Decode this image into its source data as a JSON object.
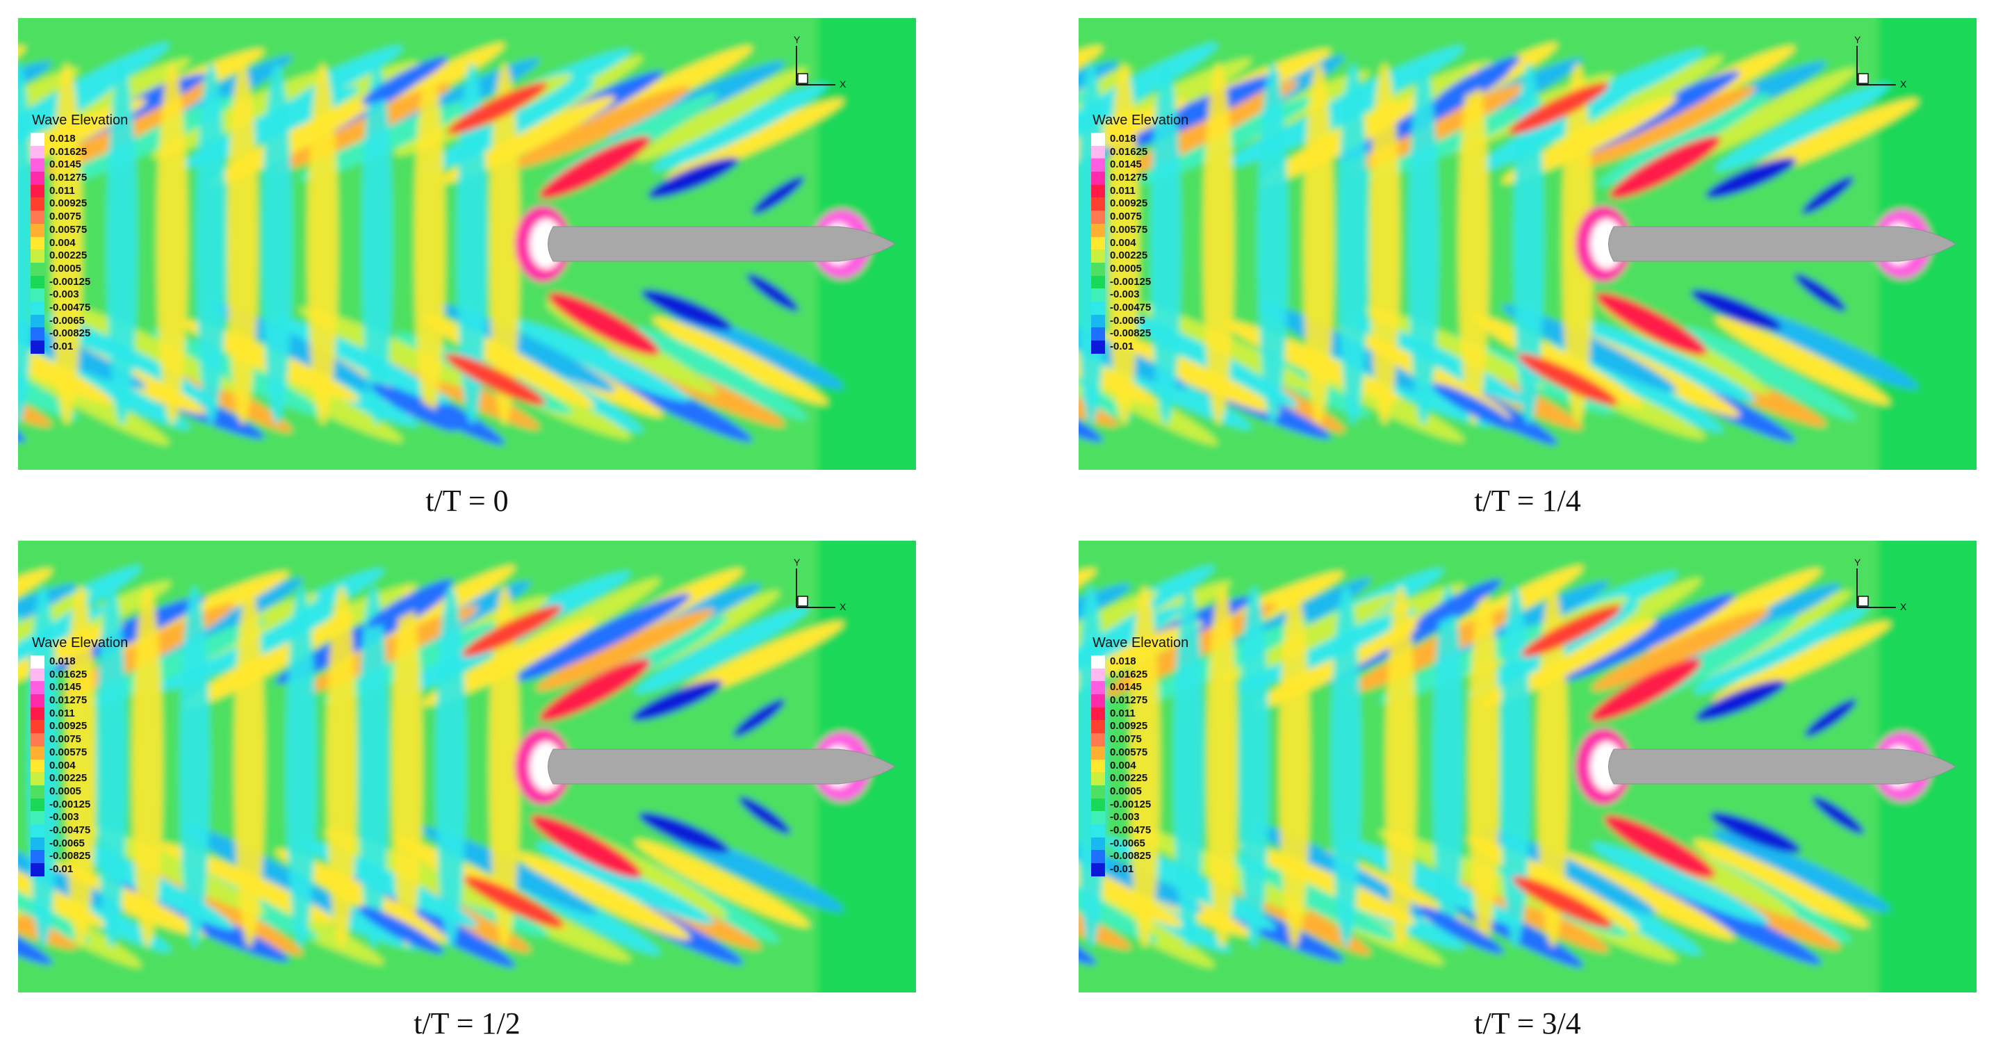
{
  "panels": [
    {
      "id": "p0",
      "caption": "t/T = 0",
      "phase": 0.0
    },
    {
      "id": "p1",
      "caption": "t/T = 1/4",
      "phase": 0.25
    },
    {
      "id": "p2",
      "caption": "t/T = 1/2",
      "phase": 0.5
    },
    {
      "id": "p3",
      "caption": "t/T = 3/4",
      "phase": 0.75
    }
  ],
  "legend": {
    "title": "Wave Elevation",
    "levels": [
      {
        "label": "0.018",
        "color": "#ffffff"
      },
      {
        "label": "0.01625",
        "color": "#ffb8f0"
      },
      {
        "label": "0.0145",
        "color": "#ff5ee0"
      },
      {
        "label": "0.01275",
        "color": "#ff2aa8"
      },
      {
        "label": "0.011",
        "color": "#ff1a4a"
      },
      {
        "label": "0.00925",
        "color": "#ff4030"
      },
      {
        "label": "0.0075",
        "color": "#ff7a50"
      },
      {
        "label": "0.00575",
        "color": "#ffb030"
      },
      {
        "label": "0.004",
        "color": "#ffe830"
      },
      {
        "label": "0.00225",
        "color": "#c8f040"
      },
      {
        "label": "0.0005",
        "color": "#4ee060"
      },
      {
        "label": "-0.00125",
        "color": "#1ad858"
      },
      {
        "label": "-0.003",
        "color": "#40f0b8"
      },
      {
        "label": "-0.00475",
        "color": "#30e8e8"
      },
      {
        "label": "-0.0065",
        "color": "#1ab8f0"
      },
      {
        "label": "-0.00825",
        "color": "#2070ff"
      },
      {
        "label": "-0.01",
        "color": "#0a1ad8"
      }
    ]
  },
  "axes": {
    "x_label": "X",
    "y_label": "Y"
  }
}
